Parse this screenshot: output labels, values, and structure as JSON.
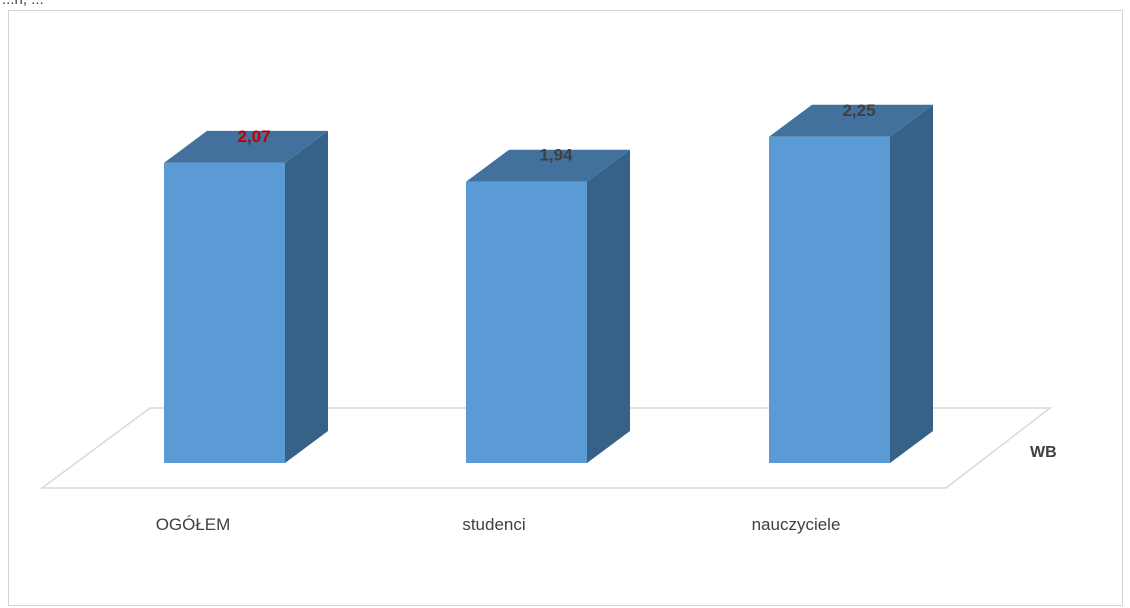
{
  "top_fragment": "...n, ...",
  "chart_data": {
    "type": "bar",
    "style": "3d-column",
    "categories": [
      "OGÓŁEM",
      "studenci",
      "nauczyciele"
    ],
    "series": [
      {
        "name": "WB",
        "values": [
          2.07,
          1.94,
          2.25
        ]
      }
    ],
    "value_labels": [
      "2,07",
      "1,94",
      "2,25"
    ],
    "value_label_colors": [
      "#c00000",
      "#404040",
      "#404040"
    ],
    "title": "",
    "xlabel": "",
    "ylabel": "",
    "ylim": [
      0,
      2.5
    ],
    "grid": false,
    "legend": "none",
    "colors": {
      "front": "#5b9bd5",
      "top": "#41719c",
      "side": "#376287",
      "floor": "#d9d9d9",
      "frame": "#d4d4d4"
    }
  }
}
